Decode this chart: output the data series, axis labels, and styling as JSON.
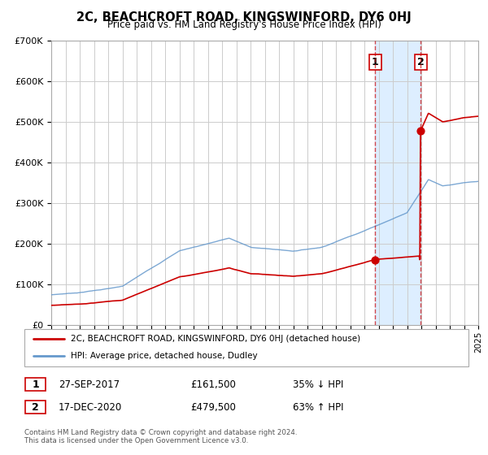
{
  "title": "2C, BEACHCROFT ROAD, KINGSWINFORD, DY6 0HJ",
  "subtitle": "Price paid vs. HM Land Registry's House Price Index (HPI)",
  "background_color": "#ffffff",
  "plot_bg_color": "#ffffff",
  "grid_color": "#cccccc",
  "transaction1": {
    "date": 2017.75,
    "price": 161500,
    "label": "1"
  },
  "transaction2": {
    "date": 2020.96,
    "price": 479500,
    "label": "2"
  },
  "legend_label_red": "2C, BEACHCROFT ROAD, KINGSWINFORD, DY6 0HJ (detached house)",
  "legend_label_blue": "HPI: Average price, detached house, Dudley",
  "table_row1": [
    "1",
    "27-SEP-2017",
    "£161,500",
    "35% ↓ HPI"
  ],
  "table_row2": [
    "2",
    "17-DEC-2020",
    "£479,500",
    "63% ↑ HPI"
  ],
  "footnote1": "Contains HM Land Registry data © Crown copyright and database right 2024.",
  "footnote2": "This data is licensed under the Open Government Licence v3.0.",
  "red_color": "#cc0000",
  "blue_color": "#6699cc",
  "highlight_color": "#ddeeff",
  "dashed_color": "#cc0000",
  "xlim": [
    1995,
    2025
  ],
  "ylim": [
    0,
    700000
  ]
}
